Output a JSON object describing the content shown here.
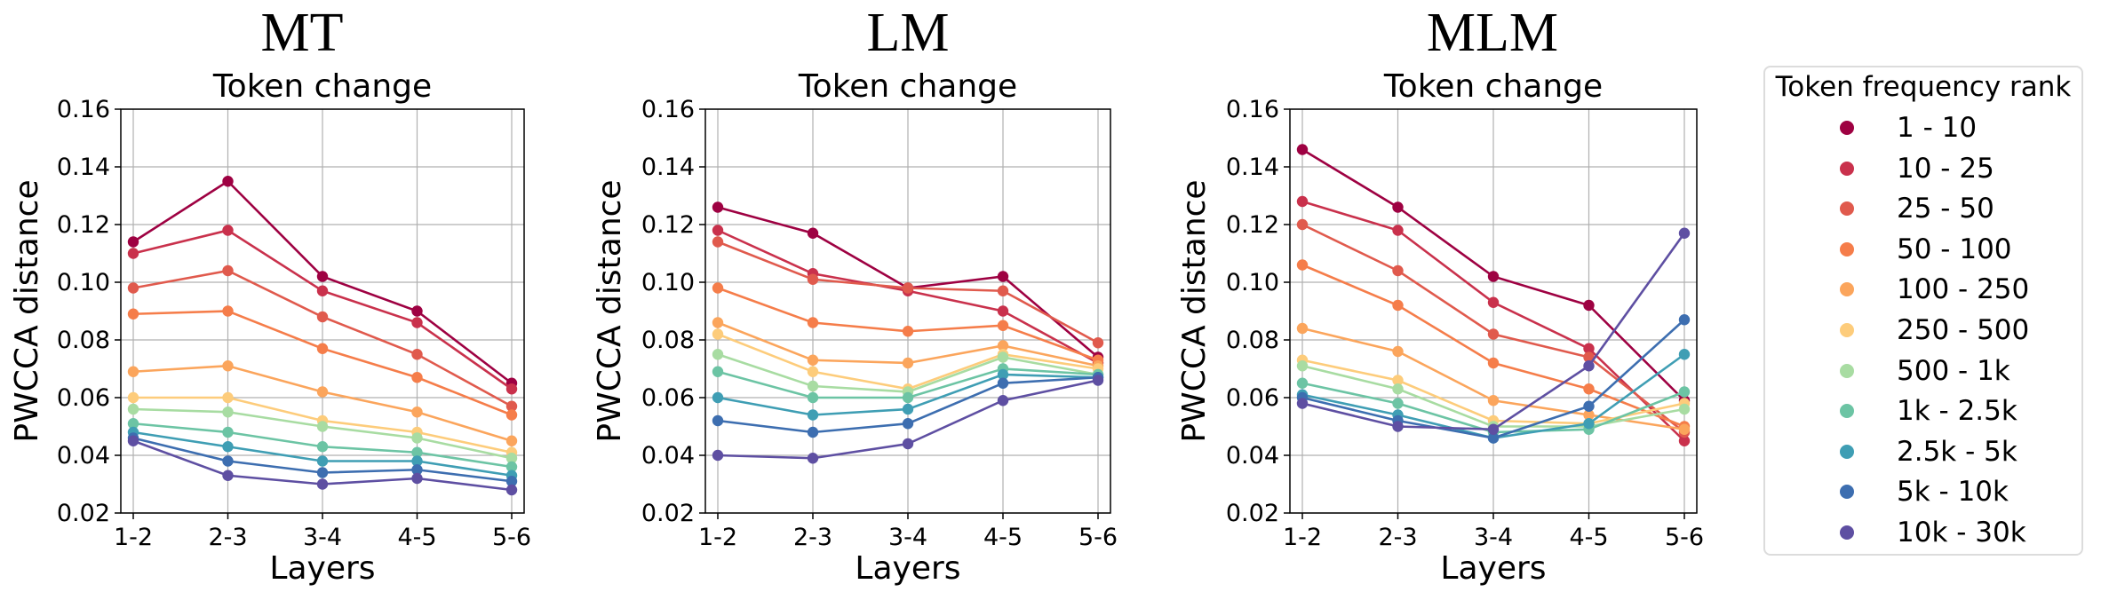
{
  "panel_titles": [
    "MT",
    "LM",
    "MLM"
  ],
  "legend": {
    "title": "Token frequency rank",
    "entries": [
      {
        "label": "1 - 10",
        "color": "#9e0142"
      },
      {
        "label": "10 - 25",
        "color": "#c9314c"
      },
      {
        "label": "25 - 50",
        "color": "#e05a4d"
      },
      {
        "label": "50 - 100",
        "color": "#f57d4a"
      },
      {
        "label": "100 - 250",
        "color": "#fba55c"
      },
      {
        "label": "250 - 500",
        "color": "#fdcc7b"
      },
      {
        "label": "500 - 1k",
        "color": "#a8dca2"
      },
      {
        "label": "1k - 2.5k",
        "color": "#6cc4a4"
      },
      {
        "label": "2.5k - 5k",
        "color": "#3f9eb4"
      },
      {
        "label": "5k - 10k",
        "color": "#3d6eb0"
      },
      {
        "label": "10k - 30k",
        "color": "#5e4fa2"
      }
    ]
  },
  "chart_data": [
    {
      "type": "line",
      "title": "Token change",
      "xlabel": "Layers",
      "ylabel": "PWCCA distance",
      "categories": [
        "1-2",
        "2-3",
        "3-4",
        "4-5",
        "5-6"
      ],
      "ylim": [
        0.02,
        0.16
      ],
      "yticks": [
        "0.02",
        "0.04",
        "0.06",
        "0.08",
        "0.10",
        "0.12",
        "0.14",
        "0.16"
      ],
      "grid": true,
      "series": [
        {
          "name": "1 - 10",
          "values": [
            0.114,
            0.135,
            0.102,
            0.09,
            0.065
          ]
        },
        {
          "name": "10 - 25",
          "values": [
            0.11,
            0.118,
            0.097,
            0.086,
            0.063
          ]
        },
        {
          "name": "25 - 50",
          "values": [
            0.098,
            0.104,
            0.088,
            0.075,
            0.057
          ]
        },
        {
          "name": "50 - 100",
          "values": [
            0.089,
            0.09,
            0.077,
            0.067,
            0.054
          ]
        },
        {
          "name": "100 - 250",
          "values": [
            0.069,
            0.071,
            0.062,
            0.055,
            0.045
          ]
        },
        {
          "name": "250 - 500",
          "values": [
            0.06,
            0.06,
            0.052,
            0.048,
            0.041
          ]
        },
        {
          "name": "500 - 1k",
          "values": [
            0.056,
            0.055,
            0.05,
            0.046,
            0.039
          ]
        },
        {
          "name": "1k - 2.5k",
          "values": [
            0.051,
            0.048,
            0.043,
            0.041,
            0.036
          ]
        },
        {
          "name": "2.5k - 5k",
          "values": [
            0.048,
            0.043,
            0.038,
            0.038,
            0.033
          ]
        },
        {
          "name": "5k - 10k",
          "values": [
            0.046,
            0.038,
            0.034,
            0.035,
            0.031
          ]
        },
        {
          "name": "10k - 30k",
          "values": [
            0.045,
            0.033,
            0.03,
            0.032,
            0.028
          ]
        }
      ]
    },
    {
      "type": "line",
      "title": "Token change",
      "xlabel": "Layers",
      "ylabel": "PWCCA distance",
      "categories": [
        "1-2",
        "2-3",
        "3-4",
        "4-5",
        "5-6"
      ],
      "ylim": [
        0.02,
        0.16
      ],
      "yticks": [
        "0.02",
        "0.04",
        "0.06",
        "0.08",
        "0.10",
        "0.12",
        "0.14",
        "0.16"
      ],
      "grid": true,
      "series": [
        {
          "name": "1 - 10",
          "values": [
            0.126,
            0.117,
            0.098,
            0.102,
            0.074
          ]
        },
        {
          "name": "10 - 25",
          "values": [
            0.118,
            0.103,
            0.097,
            0.09,
            0.072
          ]
        },
        {
          "name": "25 - 50",
          "values": [
            0.114,
            0.101,
            0.098,
            0.097,
            0.079
          ]
        },
        {
          "name": "50 - 100",
          "values": [
            0.098,
            0.086,
            0.083,
            0.085,
            0.073
          ]
        },
        {
          "name": "100 - 250",
          "values": [
            0.086,
            0.073,
            0.072,
            0.078,
            0.071
          ]
        },
        {
          "name": "250 - 500",
          "values": [
            0.082,
            0.069,
            0.063,
            0.075,
            0.07
          ]
        },
        {
          "name": "500 - 1k",
          "values": [
            0.075,
            0.064,
            0.062,
            0.074,
            0.068
          ]
        },
        {
          "name": "1k - 2.5k",
          "values": [
            0.069,
            0.06,
            0.06,
            0.07,
            0.068
          ]
        },
        {
          "name": "2.5k - 5k",
          "values": [
            0.06,
            0.054,
            0.056,
            0.068,
            0.067
          ]
        },
        {
          "name": "5k - 10k",
          "values": [
            0.052,
            0.048,
            0.051,
            0.065,
            0.067
          ]
        },
        {
          "name": "10k - 30k",
          "values": [
            0.04,
            0.039,
            0.044,
            0.059,
            0.066
          ]
        }
      ]
    },
    {
      "type": "line",
      "title": "Token change",
      "xlabel": "Layers",
      "ylabel": "PWCCA distance",
      "categories": [
        "1-2",
        "2-3",
        "3-4",
        "4-5",
        "5-6"
      ],
      "ylim": [
        0.02,
        0.16
      ],
      "yticks": [
        "0.02",
        "0.04",
        "0.06",
        "0.08",
        "0.10",
        "0.12",
        "0.14",
        "0.16"
      ],
      "grid": true,
      "series": [
        {
          "name": "1 - 10",
          "values": [
            0.146,
            0.126,
            0.102,
            0.092,
            0.059
          ]
        },
        {
          "name": "10 - 25",
          "values": [
            0.128,
            0.118,
            0.093,
            0.077,
            0.045
          ]
        },
        {
          "name": "25 - 50",
          "values": [
            0.12,
            0.104,
            0.082,
            0.074,
            0.048
          ]
        },
        {
          "name": "50 - 100",
          "values": [
            0.106,
            0.092,
            0.072,
            0.063,
            0.05
          ]
        },
        {
          "name": "100 - 250",
          "values": [
            0.084,
            0.076,
            0.059,
            0.054,
            0.049
          ]
        },
        {
          "name": "250 - 500",
          "values": [
            0.073,
            0.066,
            0.052,
            0.051,
            0.058
          ]
        },
        {
          "name": "500 - 1k",
          "values": [
            0.071,
            0.063,
            0.05,
            0.05,
            0.056
          ]
        },
        {
          "name": "1k - 2.5k",
          "values": [
            0.065,
            0.058,
            0.048,
            0.049,
            0.062
          ]
        },
        {
          "name": "2.5k - 5k",
          "values": [
            0.061,
            0.054,
            0.046,
            0.051,
            0.075
          ]
        },
        {
          "name": "5k - 10k",
          "values": [
            0.06,
            0.052,
            0.046,
            0.057,
            0.087
          ]
        },
        {
          "name": "10k - 30k",
          "values": [
            0.058,
            0.05,
            0.049,
            0.071,
            0.117
          ]
        }
      ]
    }
  ]
}
